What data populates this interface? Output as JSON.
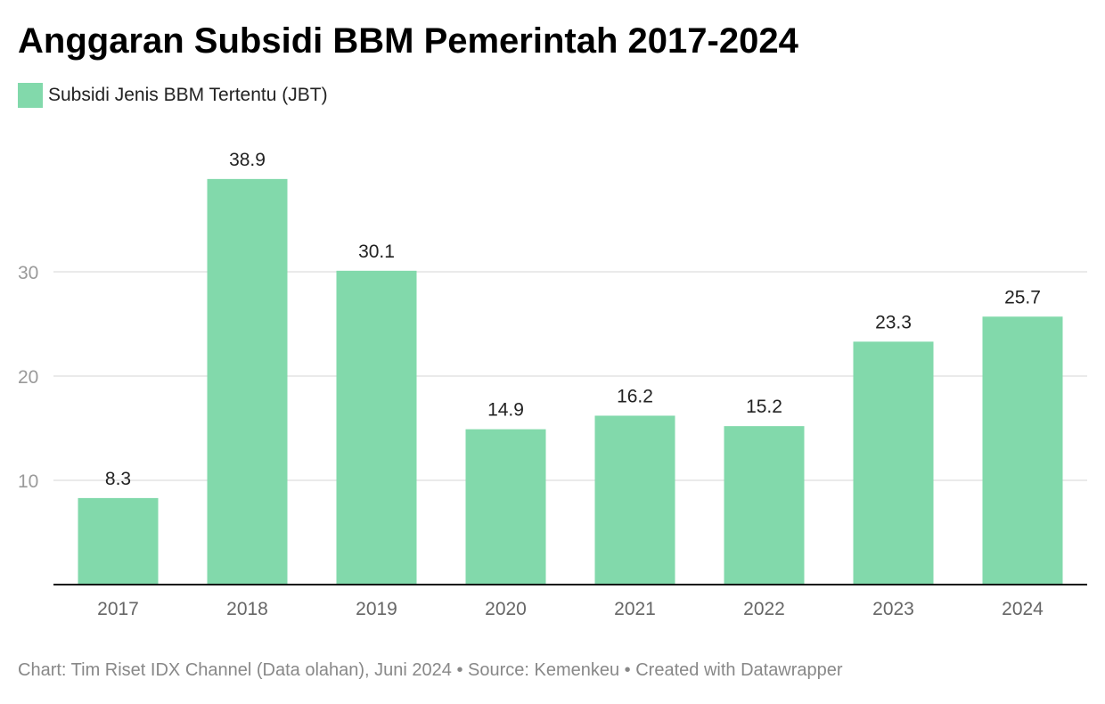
{
  "colors": {
    "bar": "#82d9ab",
    "grid": "#e3e3e3",
    "baseline": "#111111",
    "tick_text": "#9a9a9a",
    "value_text": "#222222"
  },
  "footer": "Chart: Tim Riset IDX Channel (Data olahan), Juni 2024 • Source: Kemenkeu • Created with Datawrapper",
  "chart_data": {
    "type": "bar",
    "title": "Anggaran Subsidi BBM Pemerintah 2017-2024",
    "categories": [
      "2017",
      "2018",
      "2019",
      "2020",
      "2021",
      "2022",
      "2023",
      "2024"
    ],
    "series": [
      {
        "name": "Subsidi Jenis BBM Tertentu (JBT)",
        "values": [
          8.3,
          38.9,
          30.1,
          14.9,
          16.2,
          15.2,
          23.3,
          25.7
        ]
      }
    ],
    "yticks": [
      10,
      20,
      30
    ],
    "ylim": [
      0,
      40
    ],
    "grid": true,
    "legend": "top-left",
    "xlabel": "",
    "ylabel": ""
  }
}
